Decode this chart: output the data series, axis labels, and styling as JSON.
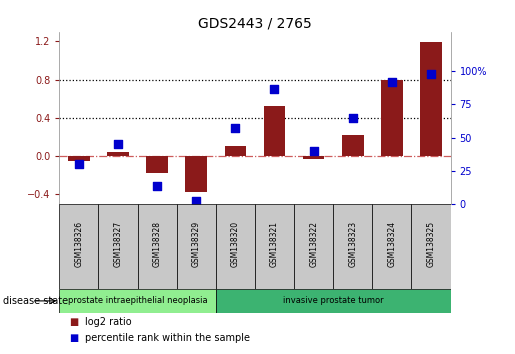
{
  "title": "GDS2443 / 2765",
  "samples": [
    "GSM138326",
    "GSM138327",
    "GSM138328",
    "GSM138329",
    "GSM138320",
    "GSM138321",
    "GSM138322",
    "GSM138323",
    "GSM138324",
    "GSM138325"
  ],
  "log2_ratio": [
    -0.05,
    0.04,
    -0.18,
    -0.38,
    0.1,
    0.52,
    -0.03,
    0.22,
    0.8,
    1.19
  ],
  "percentile_rank": [
    30,
    45,
    13,
    2,
    57,
    87,
    40,
    65,
    92,
    98
  ],
  "bar_color": "#8B1A1A",
  "dot_color": "#0000CD",
  "zero_line_color": "#CD5C5C",
  "dotted_line_color": "#000000",
  "ylim_left": [
    -0.5,
    1.3
  ],
  "ylim_right": [
    0,
    130
  ],
  "yticks_left": [
    -0.4,
    0.0,
    0.4,
    0.8,
    1.2
  ],
  "yticks_right": [
    0,
    25,
    50,
    75,
    100
  ],
  "ytick_labels_right": [
    "0",
    "25",
    "50",
    "75",
    "100%"
  ],
  "hlines": [
    0.4,
    0.8
  ],
  "disease_groups": [
    {
      "label": "prostate intraepithelial neoplasia",
      "start": 0,
      "end": 4,
      "color": "#90EE90"
    },
    {
      "label": "invasive prostate tumor",
      "start": 4,
      "end": 10,
      "color": "#3CB371"
    }
  ],
  "legend_items": [
    {
      "label": "log2 ratio",
      "color": "#8B1A1A"
    },
    {
      "label": "percentile rank within the sample",
      "color": "#0000CD"
    }
  ],
  "disease_state_label": "disease state",
  "sample_box_color": "#C8C8C8",
  "neoplasia_color": "#90EE90",
  "tumor_color": "#3CB371"
}
